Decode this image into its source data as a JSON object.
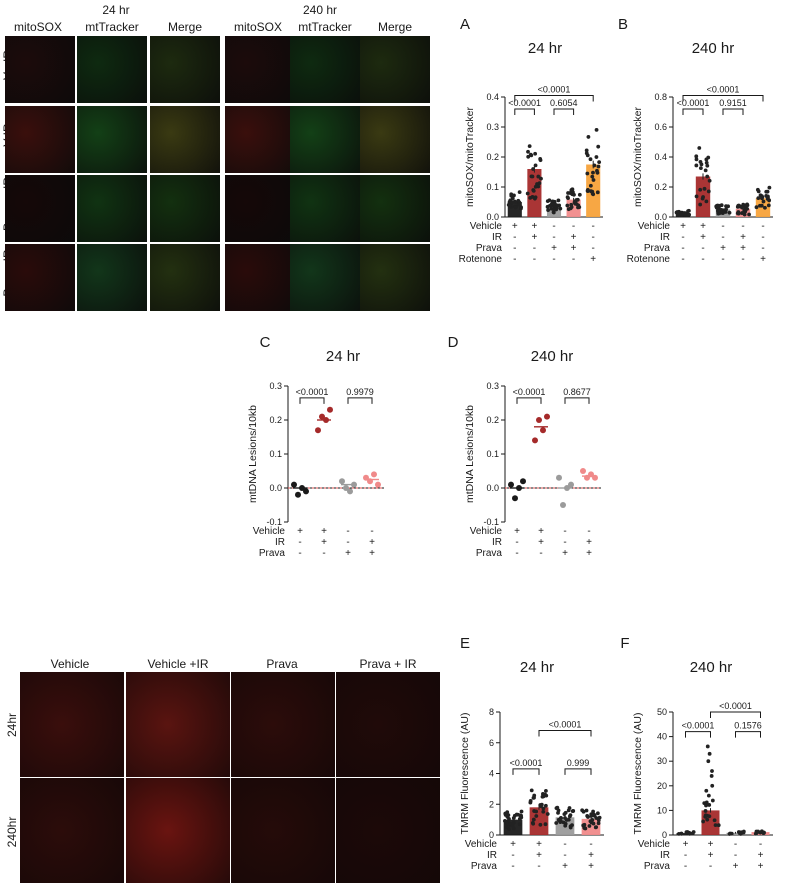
{
  "micrographs_top": {
    "groups": [
      {
        "title": "24 hr",
        "columns": [
          "mitoSOX",
          "mtTracker",
          "Merge"
        ]
      },
      {
        "title": "240 hr",
        "columns": [
          "mitoSOX",
          "mtTracker",
          "Merge"
        ]
      }
    ],
    "rows": [
      "V-nIR",
      "V-IR",
      "Prava-nIR",
      "Prava-IR"
    ]
  },
  "micrographs_bottom": {
    "columns": [
      "Vehicle",
      "Vehicle +IR",
      "Prava",
      "Prava + IR"
    ],
    "rows": [
      "24hr",
      "240hr"
    ]
  },
  "colors": {
    "black": "#1a1a1a",
    "red": "#a52a2a",
    "grey": "#9b9b9b",
    "pink": "#f08a8a",
    "orange": "#f7a23a"
  },
  "chart_data": [
    {
      "id": "A",
      "panel_letter": "A",
      "type": "bar",
      "title": "24 hr",
      "ylabel": "mitoSOX/mitoTracker",
      "ylim": [
        0,
        0.4
      ],
      "yticks": [
        "0.0",
        "0.1",
        "0.2",
        "0.3",
        "0.4"
      ],
      "categories": [
        "Vehicle",
        "Vehicle+IR",
        "Prava",
        "Prava+IR",
        "Rotenone"
      ],
      "values": [
        0.05,
        0.16,
        0.035,
        0.058,
        0.175
      ],
      "treatment_rows": [
        {
          "label": "Vehicle",
          "signs": [
            "+",
            "+",
            "-",
            "-",
            "-"
          ]
        },
        {
          "label": "IR",
          "signs": [
            "-",
            "+",
            "-",
            "+",
            "-"
          ]
        },
        {
          "label": "Prava",
          "signs": [
            "-",
            "-",
            "+",
            "+",
            "-"
          ]
        },
        {
          "label": "Rotenone",
          "signs": [
            "-",
            "-",
            "-",
            "-",
            "+"
          ]
        }
      ],
      "comparisons": [
        {
          "from": 0,
          "to": 1,
          "y": 0.36,
          "label": "<0.0001"
        },
        {
          "from": 2,
          "to": 3,
          "y": 0.36,
          "label": "0.6054"
        },
        {
          "from": 0,
          "to": 4,
          "y": 0.405,
          "label": "<0.0001"
        }
      ]
    },
    {
      "id": "B",
      "panel_letter": "B",
      "type": "bar",
      "title": "240 hr",
      "ylabel": "mitoSOX/mitoTracker",
      "ylim": [
        0,
        0.8
      ],
      "yticks": [
        "0.0",
        "0.2",
        "0.4",
        "0.6",
        "0.8"
      ],
      "categories": [
        "Vehicle",
        "Vehicle+IR",
        "Prava",
        "Prava+IR",
        "Rotenone"
      ],
      "values": [
        0.025,
        0.27,
        0.05,
        0.055,
        0.125
      ],
      "treatment_rows": [
        {
          "label": "Vehicle",
          "signs": [
            "+",
            "+",
            "-",
            "-",
            "-"
          ]
        },
        {
          "label": "IR",
          "signs": [
            "-",
            "+",
            "-",
            "+",
            "-"
          ]
        },
        {
          "label": "Prava",
          "signs": [
            "-",
            "-",
            "+",
            "+",
            "-"
          ]
        },
        {
          "label": "Rotenone",
          "signs": [
            "-",
            "-",
            "-",
            "-",
            "+"
          ]
        }
      ],
      "comparisons": [
        {
          "from": 0,
          "to": 1,
          "y": 0.72,
          "label": "<0.0001"
        },
        {
          "from": 2,
          "to": 3,
          "y": 0.72,
          "label": "0.9151"
        },
        {
          "from": 0,
          "to": 4,
          "y": 0.81,
          "label": "<0.0001"
        }
      ]
    },
    {
      "id": "C",
      "panel_letter": "C",
      "type": "scatter",
      "title": "24 hr",
      "ylabel": "mtDNA Lesions/10kb",
      "ylim": [
        -0.1,
        0.3
      ],
      "yticks": [
        "-0.1",
        "0.0",
        "0.1",
        "0.2",
        "0.3"
      ],
      "categories": [
        "Vehicle",
        "Vehicle+IR",
        "Prava",
        "Prava+IR"
      ],
      "values": [
        0.0,
        0.2,
        0.01,
        0.025
      ],
      "points": [
        [
          0.01,
          -0.02,
          0.0,
          -0.01
        ],
        [
          0.17,
          0.21,
          0.2,
          0.23
        ],
        [
          0.02,
          0.0,
          -0.01,
          0.01
        ],
        [
          0.03,
          0.02,
          0.04,
          0.01
        ]
      ],
      "treatment_rows": [
        {
          "label": "Vehicle",
          "signs": [
            "+",
            "+",
            "-",
            "-"
          ]
        },
        {
          "label": "IR",
          "signs": [
            "-",
            "+",
            "-",
            "+"
          ]
        },
        {
          "label": "Prava",
          "signs": [
            "-",
            "-",
            "+",
            "+"
          ]
        }
      ],
      "comparisons": [
        {
          "from": 0,
          "to": 1,
          "y": 0.265,
          "label": "<0.0001"
        },
        {
          "from": 2,
          "to": 3,
          "y": 0.265,
          "label": "0.9979"
        }
      ]
    },
    {
      "id": "D",
      "panel_letter": "D",
      "type": "scatter",
      "title": "240 hr",
      "ylabel": "mtDNA Lesions/10kb",
      "ylim": [
        -0.1,
        0.3
      ],
      "yticks": [
        "-0.1",
        "0.0",
        "0.1",
        "0.2",
        "0.3"
      ],
      "categories": [
        "Vehicle",
        "Vehicle+IR",
        "Prava",
        "Prava+IR"
      ],
      "values": [
        0.0,
        0.18,
        0.0,
        0.035
      ],
      "points": [
        [
          0.01,
          -0.03,
          0.0,
          0.02
        ],
        [
          0.14,
          0.2,
          0.17,
          0.21
        ],
        [
          0.03,
          -0.05,
          0.0,
          0.01
        ],
        [
          0.05,
          0.03,
          0.04,
          0.03
        ]
      ],
      "treatment_rows": [
        {
          "label": "Vehicle",
          "signs": [
            "+",
            "+",
            "-",
            "-"
          ]
        },
        {
          "label": "IR",
          "signs": [
            "-",
            "+",
            "-",
            "+"
          ]
        },
        {
          "label": "Prava",
          "signs": [
            "-",
            "-",
            "+",
            "+"
          ]
        }
      ],
      "comparisons": [
        {
          "from": 0,
          "to": 1,
          "y": 0.265,
          "label": "<0.0001"
        },
        {
          "from": 2,
          "to": 3,
          "y": 0.265,
          "label": "0.8677"
        }
      ]
    },
    {
      "id": "E",
      "panel_letter": "E",
      "type": "bar",
      "title": "24 hr",
      "ylabel": "TMRM Fluorescence (AU)",
      "ylim": [
        0,
        8
      ],
      "yticks": [
        "0",
        "2",
        "4",
        "6",
        "8"
      ],
      "categories": [
        "Vehicle",
        "Vehicle+IR",
        "Prava",
        "Prava+IR"
      ],
      "values": [
        1.0,
        1.8,
        1.15,
        1.05
      ],
      "treatment_rows": [
        {
          "label": "Vehicle",
          "signs": [
            "+",
            "+",
            "-",
            "-"
          ]
        },
        {
          "label": "IR",
          "signs": [
            "-",
            "+",
            "-",
            "+"
          ]
        },
        {
          "label": "Prava",
          "signs": [
            "-",
            "-",
            "+",
            "+"
          ]
        }
      ],
      "comparisons": [
        {
          "from": 0,
          "to": 1,
          "y": 4.3,
          "label": "<0.0001"
        },
        {
          "from": 2,
          "to": 3,
          "y": 4.3,
          "label": "0.999"
        },
        {
          "from": 1,
          "to": 3,
          "y": 6.8,
          "label": "<0.0001"
        }
      ]
    },
    {
      "id": "F",
      "panel_letter": "F",
      "type": "bar",
      "title": "240 hr",
      "ylabel": "TMRM Fluorescence (AU)",
      "ylim": [
        0,
        50
      ],
      "yticks": [
        "0",
        "10",
        "20",
        "30",
        "40",
        "50"
      ],
      "categories": [
        "Vehicle",
        "Vehicle+IR",
        "Prava",
        "Prava+IR"
      ],
      "values": [
        0.8,
        10,
        0.9,
        1.2
      ],
      "treatment_rows": [
        {
          "label": "Vehicle",
          "signs": [
            "+",
            "+",
            "-",
            "-"
          ]
        },
        {
          "label": "IR",
          "signs": [
            "-",
            "+",
            "-",
            "+"
          ]
        },
        {
          "label": "Prava",
          "signs": [
            "-",
            "-",
            "+",
            "+"
          ]
        }
      ],
      "comparisons": [
        {
          "from": 0,
          "to": 1,
          "y": 42,
          "label": "<0.0001"
        },
        {
          "from": 2,
          "to": 3,
          "y": 42,
          "label": "0.1576"
        },
        {
          "from": 1,
          "to": 3,
          "y": 50,
          "label": "<0.0001"
        }
      ]
    }
  ]
}
